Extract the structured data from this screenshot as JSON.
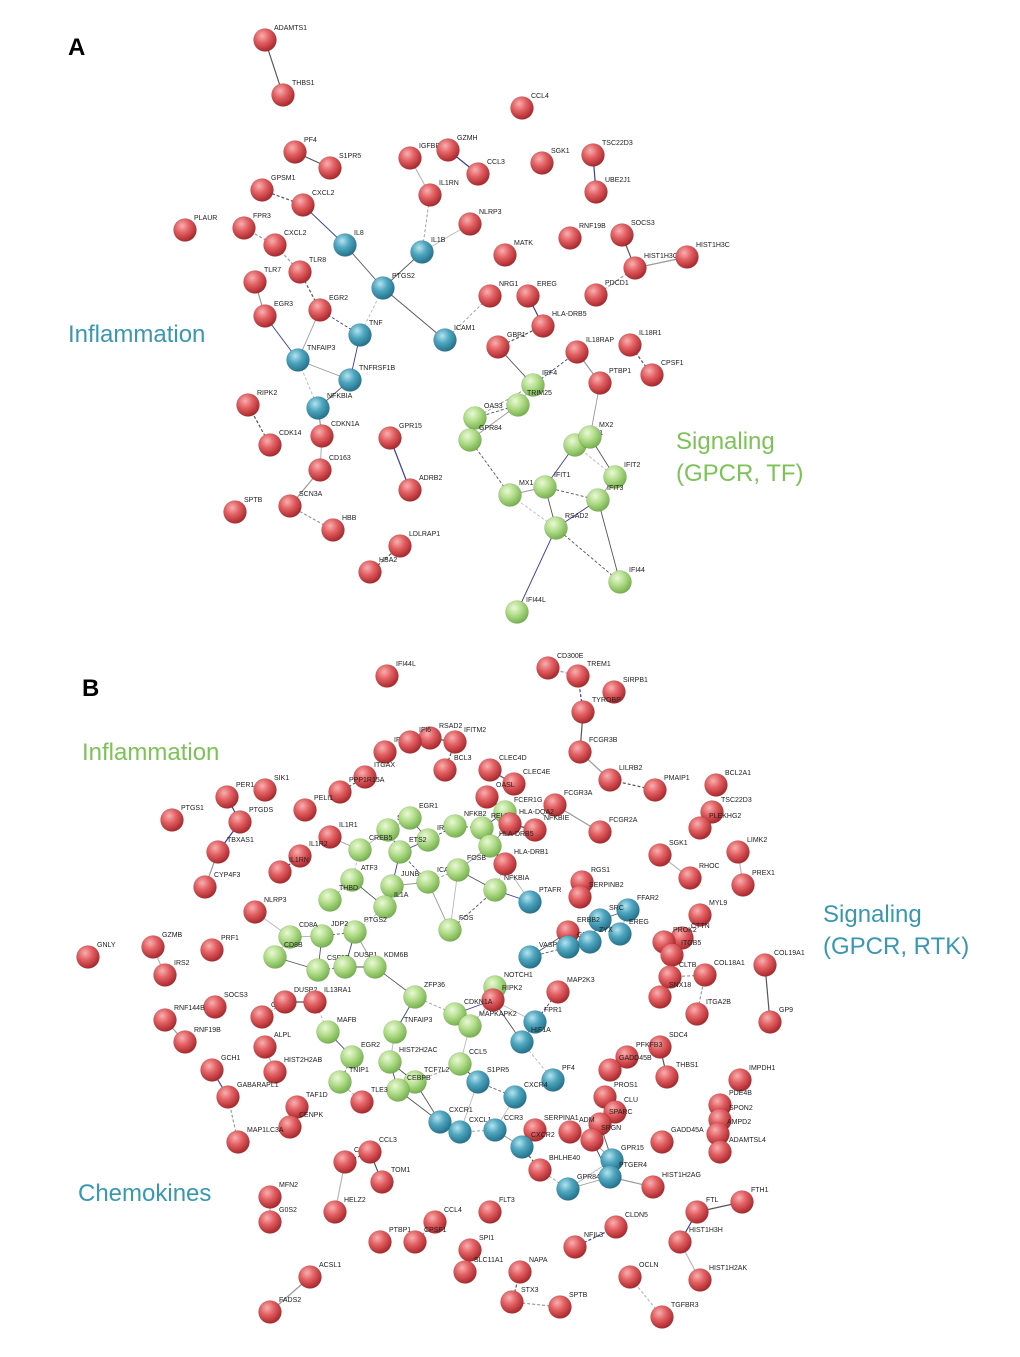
{
  "panels": [
    {
      "label": "A",
      "annotations": [
        {
          "lines": [
            "Inflammation"
          ]
        },
        {
          "lines": [
            "Signaling",
            "(GPCR, TF)"
          ]
        }
      ],
      "nodes": [
        {
          "label": "ADAMTS1"
        },
        {
          "label": "THBS1"
        },
        {
          "label": "PF4"
        },
        {
          "label": "S1PR5"
        },
        {
          "label": "IGFBP3"
        },
        {
          "label": "GZMH"
        },
        {
          "label": "CCL4"
        },
        {
          "label": "SGK1"
        },
        {
          "label": "TSC22D3"
        },
        {
          "label": "CCL3"
        },
        {
          "label": "GPSM1"
        },
        {
          "label": "CXCL2"
        },
        {
          "label": "PLAUR"
        },
        {
          "label": "FPR3"
        },
        {
          "label": "CXCL2"
        },
        {
          "label": "IL8"
        },
        {
          "label": "IL1RN"
        },
        {
          "label": "NLRP3"
        },
        {
          "label": "UBE2J1"
        },
        {
          "label": "RNF19B"
        },
        {
          "label": "SOCS3"
        },
        {
          "label": "HIST1H3G"
        },
        {
          "label": "HIST1H3C"
        },
        {
          "label": "IL1B"
        },
        {
          "label": "TLR7"
        },
        {
          "label": "TLR8"
        },
        {
          "label": "PTGS2"
        },
        {
          "label": "MATK"
        },
        {
          "label": "NRG1"
        },
        {
          "label": "EREG"
        },
        {
          "label": "PDCD1"
        },
        {
          "label": "EGR3"
        },
        {
          "label": "EGR2"
        },
        {
          "label": "HLA-DRB5"
        },
        {
          "label": "TNF"
        },
        {
          "label": "ICAM1"
        },
        {
          "label": "GBP1"
        },
        {
          "label": "IL18RAP"
        },
        {
          "label": "IL18R1"
        },
        {
          "label": "TNFAIP3"
        },
        {
          "label": "TNFRSF1B"
        },
        {
          "label": "IRF4"
        },
        {
          "label": "PTBP1"
        },
        {
          "label": "CPSF1"
        },
        {
          "label": "RIPK2"
        },
        {
          "label": "NFKBIA"
        },
        {
          "label": "OAS3"
        },
        {
          "label": "TRIM25"
        },
        {
          "label": "GPR84"
        },
        {
          "label": "CDK14"
        },
        {
          "label": "CDKN1A"
        },
        {
          "label": "GPR15"
        },
        {
          "label": "EGR1"
        },
        {
          "label": "MX2"
        },
        {
          "label": "CD163"
        },
        {
          "label": "ADRB2"
        },
        {
          "label": "IFIT2"
        },
        {
          "label": "MX1"
        },
        {
          "label": "IFIT1"
        },
        {
          "label": "IFIT3"
        },
        {
          "label": "SPTB"
        },
        {
          "label": "SCN3A"
        },
        {
          "label": "HBB"
        },
        {
          "label": "RSAD2"
        },
        {
          "label": "LDLRAP1"
        },
        {
          "label": "HBA2"
        },
        {
          "label": "IFI44"
        },
        {
          "label": "IFI44L"
        }
      ]
    },
    {
      "label": "B",
      "annotations": [
        {
          "lines": [
            "Inflammation"
          ]
        },
        {
          "lines": [
            "Signaling",
            "(GPCR, RTK)"
          ]
        },
        {
          "lines": [
            "Chemokines"
          ]
        }
      ],
      "nodes": [
        {
          "label": "IFI44L"
        },
        {
          "label": "CD300E"
        },
        {
          "label": "TREM1"
        },
        {
          "label": "SIRPB1"
        },
        {
          "label": "TYROBP"
        },
        {
          "label": "RSAD2"
        },
        {
          "label": "IFIT2"
        },
        {
          "label": "IFI6"
        },
        {
          "label": "IFITM2"
        },
        {
          "label": "FCGR3B"
        },
        {
          "label": "LILRB2"
        },
        {
          "label": "PMAIP1"
        },
        {
          "label": "BCL2A1"
        },
        {
          "label": "BCL3"
        },
        {
          "label": "CLEC4D"
        },
        {
          "label": "CLEC4E"
        },
        {
          "label": "ITGAX"
        },
        {
          "label": "PPP1R15A"
        },
        {
          "label": "SIK1"
        },
        {
          "label": "PER1"
        },
        {
          "label": "PELI1"
        },
        {
          "label": "FCER1G"
        },
        {
          "label": "OASL"
        },
        {
          "label": "FCGR3A"
        },
        {
          "label": "TSC22D3"
        },
        {
          "label": "PLEKHG2"
        },
        {
          "label": "PTGS1"
        },
        {
          "label": "PTGDS"
        },
        {
          "label": "IL1R1"
        },
        {
          "label": "RELB"
        },
        {
          "label": "HLA-DQA2"
        },
        {
          "label": "NFKBIE"
        },
        {
          "label": "FCGR2A"
        },
        {
          "label": "LIMK2"
        },
        {
          "label": "SGK1"
        },
        {
          "label": "TBXAS1"
        },
        {
          "label": "IL1R2"
        },
        {
          "label": "SMAD7"
        },
        {
          "label": "IRF1"
        },
        {
          "label": "EGR1"
        },
        {
          "label": "NFKB2"
        },
        {
          "label": "HLA-DRB5"
        },
        {
          "label": "IL1RN"
        },
        {
          "label": "CREB5"
        },
        {
          "label": "ETS2"
        },
        {
          "label": "HLA-DRB1"
        },
        {
          "label": "RHOC"
        },
        {
          "label": "PREX1"
        },
        {
          "label": "CYP4F3"
        },
        {
          "label": "ICAM1"
        },
        {
          "label": "FOSB"
        },
        {
          "label": "NFKBIA"
        },
        {
          "label": "RGS1"
        },
        {
          "label": "ATF3"
        },
        {
          "label": "JUNB"
        },
        {
          "label": "THBD"
        },
        {
          "label": "IL1A"
        },
        {
          "label": "NLRP3"
        },
        {
          "label": "SERPINB2"
        },
        {
          "label": "PTAFR"
        },
        {
          "label": "FFAR2"
        },
        {
          "label": "SRC"
        },
        {
          "label": "MYL9"
        },
        {
          "label": "CTTN"
        },
        {
          "label": "PTGS2"
        },
        {
          "label": "JDP2"
        },
        {
          "label": "FOS"
        },
        {
          "label": "ERBB2"
        },
        {
          "label": "EREG"
        },
        {
          "label": "PROK2"
        },
        {
          "label": "ITGB5"
        },
        {
          "label": "CD8A"
        },
        {
          "label": "CSF3R"
        },
        {
          "label": "CD8B"
        },
        {
          "label": "GNLY"
        },
        {
          "label": "GZMB"
        },
        {
          "label": "PRF1"
        },
        {
          "label": "IRS2"
        },
        {
          "label": "DUSP1"
        },
        {
          "label": "KDM6B"
        },
        {
          "label": "NOTCH1"
        },
        {
          "label": "RIPK2"
        },
        {
          "label": "VASP"
        },
        {
          "label": "GNAZ"
        },
        {
          "label": "ZYX"
        },
        {
          "label": "CLTB"
        },
        {
          "label": "COL18A1"
        },
        {
          "label": "COL19A1"
        },
        {
          "label": "SOCS3"
        },
        {
          "label": "RNF144B"
        },
        {
          "label": "RNF19B"
        },
        {
          "label": "OSM"
        },
        {
          "label": "DUSP2"
        },
        {
          "label": "IL13RA1"
        },
        {
          "label": "ZFP36"
        },
        {
          "label": "MAP2K3"
        },
        {
          "label": "SNX18"
        },
        {
          "label": "ITGA2B"
        },
        {
          "label": "GP9"
        },
        {
          "label": "MAFB"
        },
        {
          "label": "TNFAIP3"
        },
        {
          "label": "CDKN1A"
        },
        {
          "label": "MAPKAPK2"
        },
        {
          "label": "FPR1"
        },
        {
          "label": "HIF1A"
        },
        {
          "label": "ALPL"
        },
        {
          "label": "GCH1"
        },
        {
          "label": "EGR2"
        },
        {
          "label": "HIST2H2AC"
        },
        {
          "label": "TCF7L2"
        },
        {
          "label": "CCL5"
        },
        {
          "label": "S1PR5"
        },
        {
          "label": "PF4"
        },
        {
          "label": "SDC4"
        },
        {
          "label": "PFKFB3"
        },
        {
          "label": "GADD45B"
        },
        {
          "label": "THBS1"
        },
        {
          "label": "IMPDH1"
        },
        {
          "label": "TNIP1"
        },
        {
          "label": "HIST2H2AB"
        },
        {
          "label": "GABARAPL1"
        },
        {
          "label": "CEBPB"
        },
        {
          "label": "TLE3"
        },
        {
          "label": "TAF1D"
        },
        {
          "label": "CXCR1"
        },
        {
          "label": "CXCL1"
        },
        {
          "label": "CXCR4"
        },
        {
          "label": "PROS1"
        },
        {
          "label": "PDE4B"
        },
        {
          "label": "CENPK"
        },
        {
          "label": "CCR3"
        },
        {
          "label": "CLU"
        },
        {
          "label": "SPARC"
        },
        {
          "label": "SPON2"
        },
        {
          "label": "ADM"
        },
        {
          "label": "MAP1LC3A"
        },
        {
          "label": "SERPINA1"
        },
        {
          "label": "AMPD2"
        },
        {
          "label": "SRGN"
        },
        {
          "label": "GADD45A"
        },
        {
          "label": "ADAMTSL4"
        },
        {
          "label": "CXCR2"
        },
        {
          "label": "CEBPD"
        },
        {
          "label": "CCL3"
        },
        {
          "label": "BHLHE40"
        },
        {
          "label": "GPR15"
        },
        {
          "label": "TOM1"
        },
        {
          "label": "GPR84"
        },
        {
          "label": "PTGER4"
        },
        {
          "label": "MFN2"
        },
        {
          "label": "HELZ2"
        },
        {
          "label": "HIST1H2AG"
        },
        {
          "label": "FTL"
        },
        {
          "label": "FTH1"
        },
        {
          "label": "FLT3"
        },
        {
          "label": "G0S2"
        },
        {
          "label": "CCL4"
        },
        {
          "label": "CLDN5"
        },
        {
          "label": "PTBP1"
        },
        {
          "label": "CPSF1"
        },
        {
          "label": "SPI1"
        },
        {
          "label": "NFIL3"
        },
        {
          "label": "HIST1H3H"
        },
        {
          "label": "ACSL1"
        },
        {
          "label": "NAPA"
        },
        {
          "label": "OCLN"
        },
        {
          "label": "HIST1H2AK"
        },
        {
          "label": "SLC11A1"
        },
        {
          "label": "FADS2"
        },
        {
          "label": "STX3"
        },
        {
          "label": "SPTB"
        },
        {
          "label": "TGFBR3"
        }
      ]
    }
  ]
}
